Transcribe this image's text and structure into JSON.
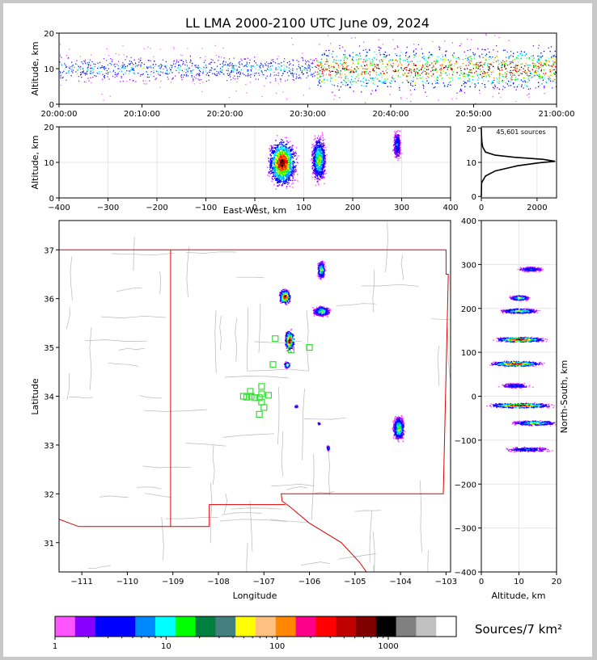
{
  "title": "LL LMA 2000-2100 UTC June 09, 2024",
  "chart_data": [
    {
      "panel": "altitude-time",
      "type": "scatter",
      "ylabel": "Altitude, km",
      "ylim": [
        0,
        20
      ],
      "yticks": [
        "0",
        "10",
        "20"
      ],
      "xticks": [
        "20:00:00",
        "20:10:00",
        "20:20:00",
        "20:30:00",
        "20:40:00",
        "20:50:00",
        "21:00:00"
      ],
      "xlim_minutes": [
        0,
        60
      ],
      "activity": [
        {
          "t_start": 0,
          "t_end": 31,
          "alt_center": 10,
          "alt_spread": 3,
          "intensity": "low"
        },
        {
          "t_start": 31,
          "t_end": 60,
          "alt_center": 10,
          "alt_spread": 5,
          "intensity": "high"
        }
      ]
    },
    {
      "panel": "altitude-east-west",
      "type": "heatmap",
      "ylabel": "Altitude, km",
      "xlabel": "East-West, km",
      "xlim": [
        -400,
        400
      ],
      "ylim": [
        0,
        20
      ],
      "xticks": [
        "−400",
        "−300",
        "−200",
        "−100",
        "0",
        "100",
        "200",
        "300",
        "400"
      ],
      "yticks": [
        "0",
        "10",
        "20"
      ],
      "clusters": [
        {
          "x_center": 55,
          "x_halfwidth": 35,
          "alt_center": 10,
          "alt_halfheight": 8,
          "peak": "high"
        },
        {
          "x_center": 130,
          "x_halfwidth": 18,
          "alt_center": 11,
          "alt_halfheight": 8,
          "peak": "medium"
        },
        {
          "x_center": 290,
          "x_halfwidth": 10,
          "alt_center": 15,
          "alt_halfheight": 5,
          "peak": "low"
        }
      ]
    },
    {
      "panel": "altitude-histogram",
      "type": "line",
      "annotation": "45,601 sources",
      "xlim": [
        0,
        2700
      ],
      "ylim": [
        0,
        20
      ],
      "xticks": [
        "0",
        "2000"
      ],
      "yticks": [
        "0",
        "10",
        "20"
      ],
      "points": [
        [
          0,
          0
        ],
        [
          10,
          4
        ],
        [
          150,
          6
        ],
        [
          500,
          7.5
        ],
        [
          1300,
          9
        ],
        [
          2100,
          9.9
        ],
        [
          2650,
          10.3
        ],
        [
          2200,
          10.9
        ],
        [
          1200,
          11.5
        ],
        [
          500,
          12.1
        ],
        [
          150,
          13
        ],
        [
          50,
          14.5
        ],
        [
          20,
          16
        ],
        [
          5,
          18
        ],
        [
          0,
          20
        ]
      ]
    },
    {
      "panel": "plan-view-map",
      "type": "heatmap",
      "xlabel": "Longitude",
      "ylabel": "Latitude",
      "xlim": [
        -111.5,
        -102.9
      ],
      "ylim": [
        30.4,
        37.6
      ],
      "xticks": [
        "−111",
        "−110",
        "−109",
        "−108",
        "−107",
        "−106",
        "−105",
        "−104",
        "−103"
      ],
      "yticks": [
        "31",
        "32",
        "33",
        "34",
        "35",
        "36",
        "37"
      ],
      "storm_clusters": [
        {
          "lon": -105.75,
          "lat": 36.6,
          "rx": 0.1,
          "ry": 0.22,
          "peak": "medium"
        },
        {
          "lon": -106.55,
          "lat": 36.05,
          "rx": 0.15,
          "ry": 0.18,
          "peak": "high"
        },
        {
          "lon": -105.75,
          "lat": 35.75,
          "rx": 0.22,
          "ry": 0.12,
          "peak": "medium"
        },
        {
          "lon": -106.45,
          "lat": 35.15,
          "rx": 0.12,
          "ry": 0.25,
          "peak": "high"
        },
        {
          "lon": -106.5,
          "lat": 34.65,
          "rx": 0.08,
          "ry": 0.08,
          "peak": "medium"
        },
        {
          "lon": -106.3,
          "lat": 33.8,
          "rx": 0.05,
          "ry": 0.04,
          "peak": "low"
        },
        {
          "lon": -104.05,
          "lat": 33.35,
          "rx": 0.15,
          "ry": 0.3,
          "peak": "medium"
        },
        {
          "lon": -105.8,
          "lat": 33.45,
          "rx": 0.03,
          "ry": 0.03,
          "peak": "low"
        },
        {
          "lon": -105.6,
          "lat": 32.95,
          "rx": 0.04,
          "ry": 0.08,
          "peak": "low"
        }
      ],
      "stations": [
        [
          -106.75,
          35.18
        ],
        [
          -106.0,
          35.0
        ],
        [
          -106.4,
          34.95
        ],
        [
          -106.8,
          34.65
        ],
        [
          -107.05,
          34.2
        ],
        [
          -107.3,
          34.1
        ],
        [
          -107.05,
          34.05
        ],
        [
          -107.45,
          34.0
        ],
        [
          -107.38,
          33.98
        ],
        [
          -107.28,
          34.0
        ],
        [
          -107.2,
          33.97
        ],
        [
          -107.1,
          33.97
        ],
        [
          -106.9,
          34.02
        ],
        [
          -107.05,
          33.88
        ],
        [
          -107.0,
          33.77
        ],
        [
          -107.1,
          33.63
        ]
      ]
    },
    {
      "panel": "north-south-altitude",
      "type": "heatmap",
      "xlabel": "Altitude, km",
      "ylabel": "North-South, km",
      "xlim": [
        0,
        20
      ],
      "ylim": [
        -400,
        400
      ],
      "xticks": [
        "0",
        "10",
        "20"
      ],
      "yticks": [
        "−400",
        "−300",
        "−200",
        "−100",
        "0",
        "100",
        "200",
        "300",
        "400"
      ],
      "bands": [
        {
          "ns": 290,
          "alt_center": 13,
          "alt_halfwidth": 4,
          "peak": "low"
        },
        {
          "ns": 225,
          "alt_center": 10,
          "alt_halfwidth": 3,
          "peak": "medium"
        },
        {
          "ns": 195,
          "alt_center": 10,
          "alt_halfwidth": 6,
          "peak": "medium"
        },
        {
          "ns": 130,
          "alt_center": 10,
          "alt_halfwidth": 8,
          "peak": "high"
        },
        {
          "ns": 75,
          "alt_center": 9,
          "alt_halfwidth": 8,
          "peak": "high"
        },
        {
          "ns": 25,
          "alt_center": 9,
          "alt_halfwidth": 5,
          "peak": "low"
        },
        {
          "ns": -20,
          "alt_center": 10,
          "alt_halfwidth": 10,
          "peak": "high"
        },
        {
          "ns": -60,
          "alt_center": 14,
          "alt_halfwidth": 7,
          "peak": "medium"
        },
        {
          "ns": -120,
          "alt_center": 12,
          "alt_halfwidth": 8,
          "peak": "low"
        }
      ]
    },
    {
      "panel": "colorbar",
      "type": "table",
      "label": "Sources/7 km²",
      "tick_labels": [
        "1",
        "10",
        "100",
        "1000"
      ],
      "colors": [
        "#ff55ff",
        "#8800ff",
        "#0000ff",
        "#0000ff",
        "#0088ff",
        "#00ffff",
        "#00ff00",
        "#008040",
        "#448080",
        "#ffff00",
        "#ffc080",
        "#ff8800",
        "#ff0088",
        "#ff0000",
        "#c00000",
        "#800000",
        "#000000",
        "#808080",
        "#c0c0c0",
        "#ffffff"
      ]
    }
  ]
}
